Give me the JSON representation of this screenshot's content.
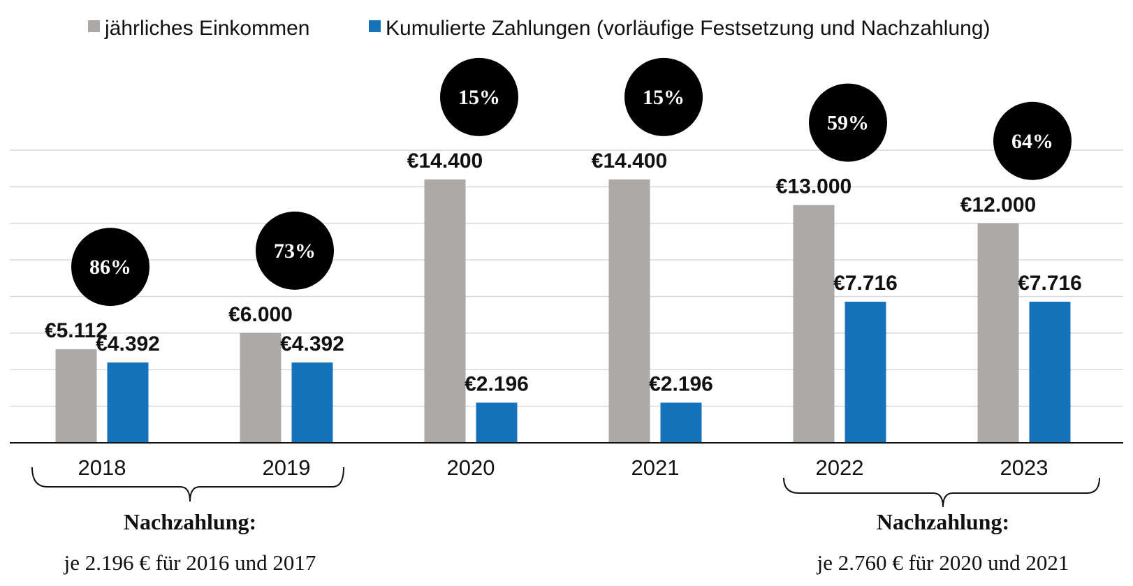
{
  "chart_data": {
    "type": "bar",
    "categories": [
      "2018",
      "2019",
      "2020",
      "2021",
      "2022",
      "2023"
    ],
    "series": [
      {
        "name": "jährliches Einkommen",
        "values": [
          5112,
          6000,
          14400,
          14400,
          13000,
          12000
        ],
        "labels": [
          "€5.112",
          "€6.000",
          "€14.400",
          "€14.400",
          "€13.000",
          "€12.000"
        ],
        "color": "#aba8a6"
      },
      {
        "name": "Kumulierte Zahlungen (vorläufige Festsetzung und Nachzahlung)",
        "values": [
          4392,
          4392,
          2196,
          2196,
          7716,
          7716
        ],
        "labels": [
          "€4.392",
          "€4.392",
          "€2.196",
          "€2.196",
          "€7.716",
          "€7.716"
        ],
        "color": "#1573bb"
      }
    ],
    "percentages": [
      "86%",
      "73%",
      "15%",
      "15%",
      "59%",
      "64%"
    ],
    "ylim": [
      0,
      16000
    ],
    "grid": true,
    "legend": "top",
    "annotations": [
      {
        "years": [
          "2018",
          "2019"
        ],
        "title": "Nachzahlung:",
        "text": "je 2.196 € für 2016 und 2017"
      },
      {
        "years": [
          "2022",
          "2023"
        ],
        "title": "Nachzahlung:",
        "text": "je 2.760 € für 2020 und 2021"
      }
    ]
  }
}
